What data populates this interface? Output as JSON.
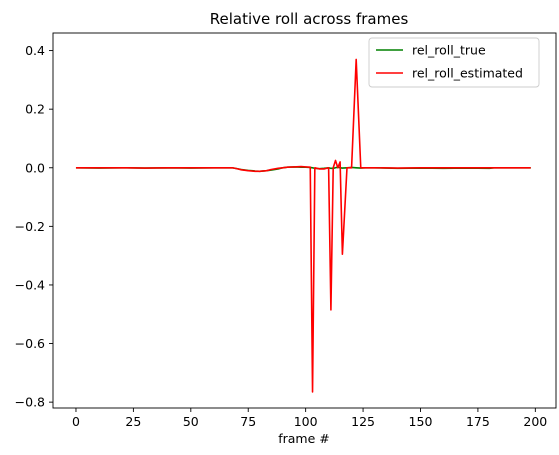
{
  "chart_data": {
    "type": "line",
    "title": "Relative roll across frames",
    "xlabel": "frame #",
    "ylabel": "",
    "xlim": [
      -10,
      209
    ],
    "ylim": [
      -0.82,
      0.46
    ],
    "xticks": [
      0,
      25,
      50,
      75,
      100,
      125,
      150,
      175,
      200
    ],
    "xtick_labels": [
      "0",
      "25",
      "50",
      "75",
      "100",
      "125",
      "150",
      "175",
      "200"
    ],
    "yticks": [
      -0.8,
      -0.6,
      -0.4,
      -0.2,
      0.0,
      0.2,
      0.4
    ],
    "ytick_labels": [
      "−0.8",
      "−0.6",
      "−0.4",
      "−0.2",
      "0.0",
      "0.2",
      "0.4"
    ],
    "grid": false,
    "legend_position": "upper right",
    "series": [
      {
        "name": "rel_roll_true",
        "color": "#008000",
        "x": [
          0,
          10,
          20,
          30,
          40,
          50,
          60,
          68,
          70,
          72,
          75,
          78,
          80,
          83,
          85,
          88,
          90,
          92,
          95,
          98,
          100,
          102,
          103,
          104,
          106,
          108,
          110,
          111,
          112,
          113,
          114,
          115,
          116,
          118,
          120,
          122,
          124,
          126,
          130,
          140,
          150,
          160,
          170,
          180,
          182,
          190,
          198
        ],
        "y": [
          0.0,
          -0.001,
          0.0,
          -0.001,
          0.0,
          -0.001,
          0.0,
          0.0,
          -0.003,
          -0.006,
          -0.009,
          -0.011,
          -0.012,
          -0.01,
          -0.008,
          -0.004,
          0.0,
          0.002,
          0.003,
          0.002,
          0.002,
          0.001,
          0.0,
          -0.002,
          -0.003,
          -0.002,
          0.0,
          -0.002,
          -0.002,
          0.0,
          0.002,
          0.0,
          -0.001,
          0.0,
          0.001,
          0.0,
          -0.001,
          0.0,
          0.0,
          -0.002,
          -0.001,
          -0.002,
          -0.001,
          -0.002,
          0.0,
          0.0,
          0.0
        ]
      },
      {
        "name": "rel_roll_estimated",
        "color": "#ff0000",
        "x": [
          0,
          10,
          20,
          30,
          40,
          50,
          60,
          68,
          70,
          72,
          75,
          78,
          80,
          83,
          85,
          88,
          90,
          92,
          95,
          98,
          100,
          102,
          103,
          104,
          106,
          108,
          110,
          111,
          112,
          113,
          114,
          115,
          116,
          118,
          120,
          122,
          124,
          126,
          130,
          140,
          150,
          160,
          170,
          180,
          182,
          190,
          198
        ],
        "y": [
          0.0,
          0.0,
          0.0,
          -0.001,
          0.0,
          0.0,
          0.0,
          0.0,
          -0.003,
          -0.007,
          -0.01,
          -0.012,
          -0.012,
          -0.01,
          -0.006,
          -0.002,
          0.0,
          0.002,
          0.003,
          0.004,
          0.003,
          0.002,
          -0.765,
          0.0,
          -0.004,
          -0.004,
          0.0,
          -0.485,
          0.0,
          0.025,
          0.0,
          0.02,
          -0.295,
          0.0,
          0.0,
          0.37,
          0.0,
          0.0,
          0.0,
          -0.001,
          0.0,
          0.0,
          0.0,
          0.0,
          0.0,
          0.0,
          0.0
        ]
      }
    ]
  }
}
